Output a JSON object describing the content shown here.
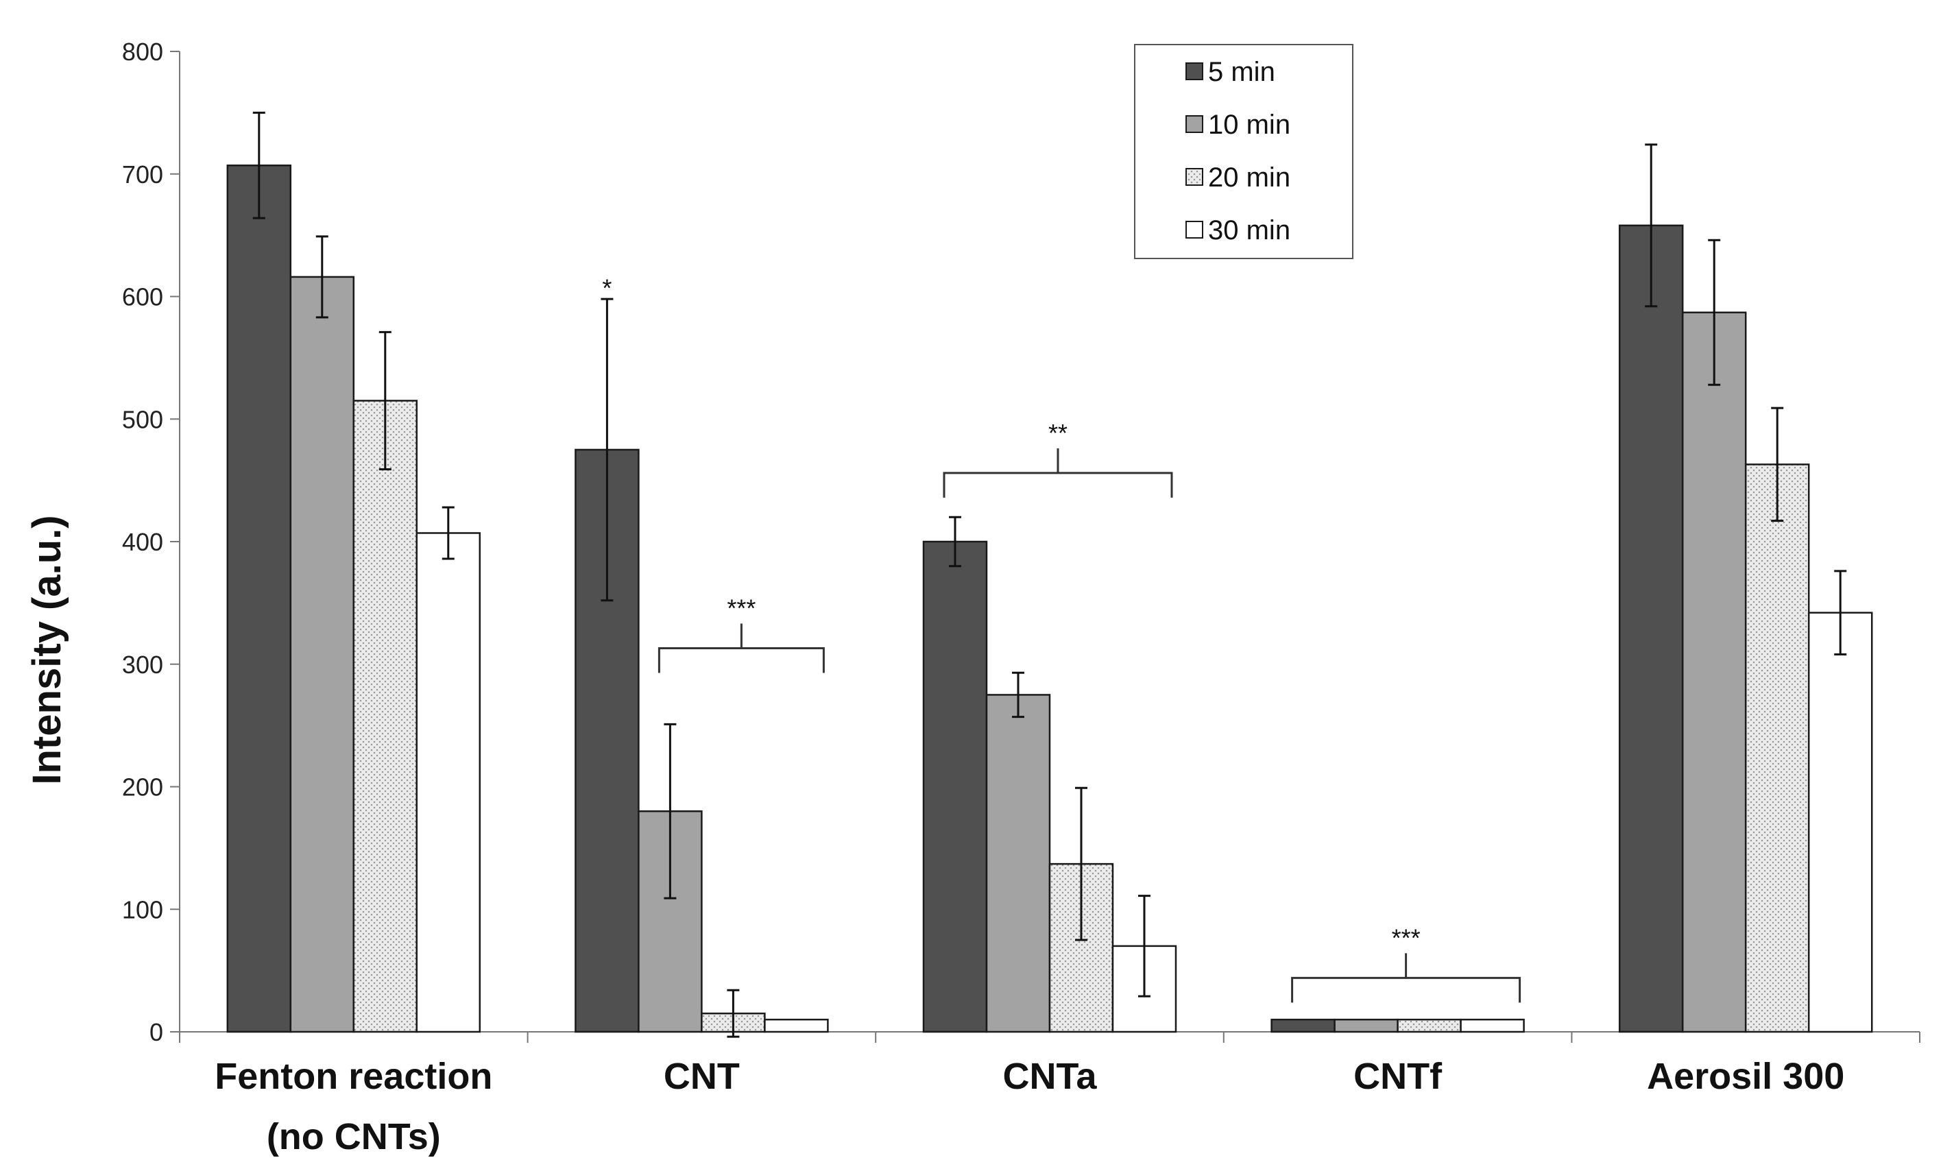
{
  "chart_data": {
    "type": "bar",
    "ylabel": "Intensity (a.u.)",
    "xlabel": "",
    "ylim": [
      0,
      800
    ],
    "yticks": [
      0,
      100,
      200,
      300,
      400,
      500,
      600,
      700,
      800
    ],
    "categories": [
      [
        "Fenton reaction",
        "(no CNTs)"
      ],
      [
        "CNT"
      ],
      [
        "CNTa"
      ],
      [
        "CNTf"
      ],
      [
        "Aerosil 300"
      ]
    ],
    "legend_position": "top-center",
    "series": [
      {
        "name": "5 min",
        "color": "#505050",
        "pattern": "solid",
        "values": [
          707,
          475,
          400,
          10,
          658
        ],
        "errors": [
          43,
          123,
          20,
          0,
          66
        ]
      },
      {
        "name": "10 min",
        "color": "#a3a3a3",
        "pattern": "solid",
        "values": [
          616,
          180,
          275,
          10,
          587
        ],
        "errors": [
          33,
          71,
          18,
          0,
          59
        ]
      },
      {
        "name": "20 min",
        "color": "#e6e6e6",
        "pattern": "dotted",
        "values": [
          515,
          15,
          137,
          10,
          463
        ],
        "errors": [
          56,
          19,
          62,
          0,
          46
        ]
      },
      {
        "name": "30 min",
        "color": "#ffffff",
        "pattern": "solid",
        "values": [
          407,
          10,
          70,
          10,
          342
        ],
        "errors": [
          21,
          0,
          41,
          0,
          34
        ]
      }
    ],
    "significance": [
      {
        "label": "*",
        "category": 1,
        "from_series": 0,
        "to_series": 0,
        "level": 610
      },
      {
        "label": "***",
        "category": 1,
        "from_series": 1,
        "to_series": 3,
        "level": 313
      },
      {
        "label": "**",
        "category": 2,
        "from_series": 0,
        "to_series": 3,
        "level": 456
      },
      {
        "label": "***",
        "category": 3,
        "from_series": 0,
        "to_series": 3,
        "level": 44
      }
    ]
  }
}
